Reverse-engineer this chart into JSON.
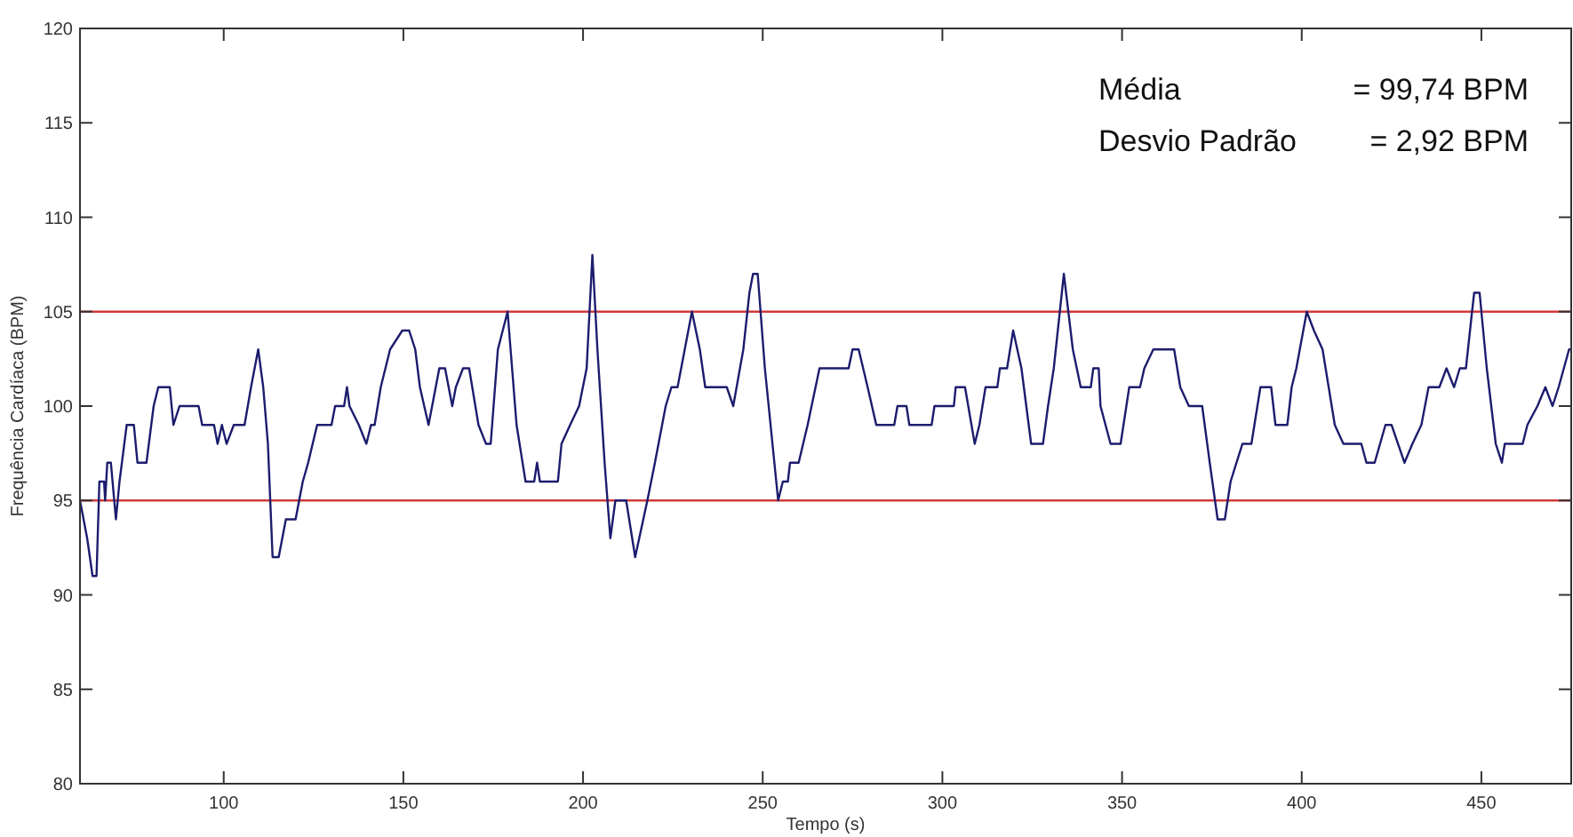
{
  "chart_data": {
    "type": "line",
    "xlabel": "Tempo (s)",
    "ylabel": "Frequência Cardíaca (BPM)",
    "xlim": [
      60,
      475
    ],
    "xticks": [
      100,
      150,
      200,
      250,
      300,
      350,
      400,
      450
    ],
    "ylim": [
      80,
      120
    ],
    "yticks": [
      80,
      85,
      90,
      95,
      100,
      105,
      110,
      115,
      120
    ],
    "grid": false,
    "marker": "none",
    "line_style": "solid",
    "ref_lines": [
      {
        "axis": "y",
        "value": 95,
        "color": "#d03a3a"
      },
      {
        "axis": "y",
        "value": 105,
        "color": "#d03a3a"
      }
    ],
    "annotations": [
      "Média = 99,74 BPM",
      "Desvio Padrão = 2,92 BPM"
    ],
    "series": [
      {
        "color": "#1c1c6e",
        "x": [
          60,
          62,
          63.5,
          64.6,
          65.4,
          66.7,
          67,
          67.6,
          68.6,
          70,
          71,
          73,
          75,
          76,
          78.5,
          80.5,
          81.8,
          85,
          86,
          87.7,
          93,
          94,
          97.3,
          98.3,
          99.5,
          100.8,
          102.8,
          105.8,
          107.6,
          109.6,
          111,
          112.3,
          113.6,
          115.3,
          117.3,
          120,
          122,
          123.5,
          126,
          130,
          131,
          133.5,
          134.3,
          135,
          137.6,
          139.7,
          141,
          142,
          143.7,
          146.3,
          149.7,
          151.6,
          153.3,
          154.6,
          157,
          160,
          161.6,
          163.6,
          164.6,
          166.6,
          168.3,
          170.9,
          173,
          174.3,
          176.3,
          179,
          181.5,
          184,
          186.4,
          187.2,
          188,
          193,
          194,
          196.4,
          198.9,
          201,
          202.6,
          204,
          206,
          207.6,
          209,
          212,
          214.5,
          217.9,
          220,
          223,
          224.6,
          226.3,
          230.3,
          232.5,
          234,
          240,
          241.8,
          244.6,
          246.3,
          247.3,
          248.6,
          250.6,
          254.3,
          255.6,
          257,
          257.6,
          260,
          262.5,
          265.8,
          273.9,
          275,
          276.7,
          279.2,
          281.6,
          286.6,
          287.5,
          290,
          290.8,
          297,
          297.8,
          303.2,
          303.7,
          306.3,
          309,
          310.3,
          312,
          315.3,
          316,
          318,
          319.7,
          322,
          324.7,
          328,
          329.4,
          331,
          333.8,
          336.3,
          338.5,
          341.3,
          342,
          343.5,
          344,
          346.8,
          349.6,
          351.2,
          352,
          355,
          356.2,
          358.7,
          364.5,
          366.2,
          368.6,
          372.3,
          374.4,
          376.6,
          378.6,
          380.2,
          383.5,
          386,
          388.5,
          391.5,
          392.7,
          396,
          397.2,
          398.5,
          401.4,
          403.4,
          405.8,
          409.2,
          411.6,
          416.6,
          418,
          420.3,
          423.3,
          425,
          428.6,
          430.8,
          433.3,
          435.3,
          438.3,
          440.3,
          442.4,
          444,
          445.7,
          447.4,
          448,
          449.5,
          451.5,
          454,
          455.7,
          456.5,
          461.5,
          462.8,
          465.6,
          467.8,
          469.8,
          471.5,
          474.4,
          475
        ],
        "values": [
          95,
          93,
          91,
          91,
          96,
          96,
          95,
          97,
          97,
          94,
          96,
          99,
          99,
          97,
          97,
          100,
          101,
          101,
          99,
          100,
          100,
          99,
          99,
          98,
          99,
          98,
          99,
          99,
          101,
          103,
          101,
          98,
          92,
          92,
          94,
          94,
          96,
          97,
          99,
          99,
          100,
          100,
          101,
          100,
          99,
          98,
          99,
          99,
          101,
          103,
          104,
          104,
          103,
          101,
          99,
          102,
          102,
          100,
          101,
          102,
          102,
          99,
          98,
          98,
          103,
          105,
          99,
          96,
          96,
          97,
          96,
          96,
          98,
          99,
          100,
          102,
          108,
          103,
          97,
          93,
          95,
          95,
          92,
          95,
          97,
          100,
          101,
          101,
          105,
          103,
          101,
          101,
          100,
          103,
          106,
          107,
          107,
          102,
          95,
          96,
          96,
          97,
          97,
          99,
          102,
          102,
          103,
          103,
          101,
          99,
          99,
          100,
          100,
          99,
          99,
          100,
          100,
          101,
          101,
          98,
          99,
          101,
          101,
          102,
          102,
          104,
          102,
          98,
          98,
          100,
          102,
          107,
          103,
          101,
          101,
          102,
          102,
          100,
          98,
          98,
          100,
          101,
          101,
          102,
          103,
          103,
          101,
          100,
          100,
          97,
          94,
          94,
          96,
          98,
          98,
          101,
          101,
          99,
          99,
          101,
          102,
          105,
          104,
          103,
          99,
          98,
          98,
          97,
          97,
          99,
          99,
          97,
          98,
          99,
          101,
          101,
          102,
          101,
          102,
          102,
          105,
          106,
          106,
          102,
          98,
          97,
          98,
          98,
          99,
          100,
          101,
          100,
          101,
          103,
          103
        ]
      }
    ]
  }
}
